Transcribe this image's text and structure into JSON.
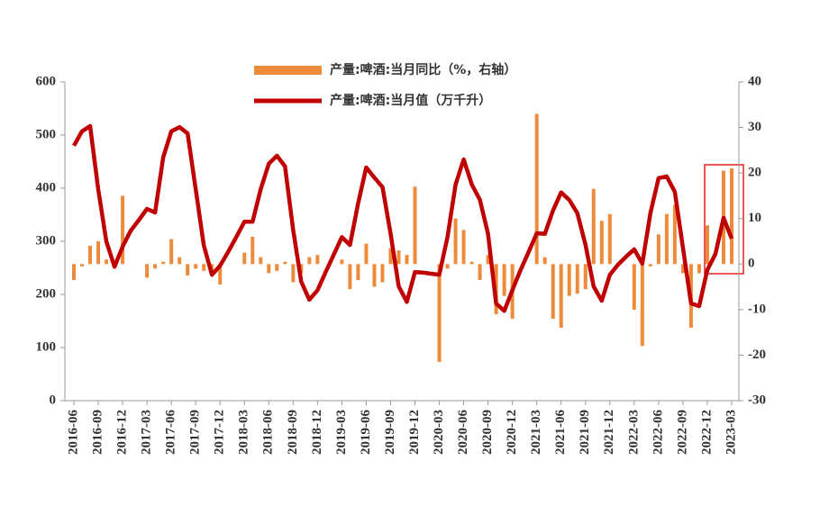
{
  "chart_data": {
    "type": "bar+line",
    "categories": [
      "2016-06",
      null,
      null,
      "2016-09",
      null,
      null,
      "2016-12",
      null,
      null,
      "2017-03",
      null,
      null,
      "2017-06",
      null,
      null,
      "2017-09",
      null,
      null,
      "2017-12",
      null,
      null,
      "2018-03",
      null,
      null,
      "2018-06",
      null,
      null,
      "2018-09",
      null,
      null,
      "2018-12",
      null,
      null,
      "2019-03",
      null,
      null,
      "2019-06",
      null,
      null,
      "2019-09",
      null,
      null,
      "2019-12",
      null,
      null,
      "2020-03",
      null,
      null,
      "2020-06",
      null,
      null,
      "2020-09",
      null,
      null,
      "2020-12",
      null,
      null,
      "2021-03",
      null,
      null,
      "2021-06",
      null,
      null,
      "2021-09",
      null,
      null,
      "2021-12",
      null,
      null,
      "2022-03",
      null,
      null,
      "2022-06",
      null,
      null,
      "2022-09",
      null,
      null,
      "2022-12",
      null,
      null,
      "2023-03"
    ],
    "series": [
      {
        "name": "产量:啤酒:当月同比（%，右轴）",
        "type": "bar",
        "axis": "y2",
        "color": "#ED8B3A",
        "values": [
          -3.5,
          -0.5,
          4,
          5,
          1,
          0.5,
          15,
          null,
          null,
          -3,
          -1,
          0.5,
          5.5,
          1.5,
          -2.5,
          -1,
          -1.5,
          -2,
          -4.5,
          null,
          null,
          2.5,
          6,
          1.5,
          -2,
          -1.5,
          0.5,
          -4,
          -2,
          1.5,
          2,
          null,
          null,
          1,
          -5.5,
          -3.5,
          4.5,
          -5,
          -4,
          3.5,
          3,
          2,
          17,
          null,
          null,
          -21.5,
          -1,
          10,
          7.5,
          0.5,
          -3.5,
          2,
          -11,
          -7,
          -12,
          null,
          null,
          33,
          1.5,
          -12,
          -14,
          -7,
          -6.5,
          -5.5,
          16.5,
          9.5,
          11,
          null,
          null,
          -10,
          -18,
          -0.5,
          6.5,
          11,
          13,
          -2,
          -14,
          -2,
          8.5,
          null,
          20.5,
          21
        ]
      },
      {
        "name": "产量:啤酒:当月值（万千升）",
        "type": "line",
        "axis": "y",
        "color": "#C00000",
        "values": [
          480,
          507,
          517,
          398,
          300,
          252,
          290,
          320,
          340,
          361,
          354,
          458,
          507,
          515,
          503,
          398,
          292,
          237,
          254,
          280,
          308,
          337,
          337,
          398,
          446,
          461,
          441,
          322,
          224,
          190,
          208,
          242,
          275,
          308,
          293,
          371,
          439,
          420,
          402,
          314,
          215,
          186,
          242,
          241,
          239,
          237,
          308,
          407,
          454,
          407,
          378,
          314,
          183,
          169,
          208,
          246,
          280,
          315,
          314,
          358,
          392,
          378,
          353,
          293,
          215,
          188,
          237,
          256,
          271,
          285,
          258,
          354,
          419,
          422,
          393,
          288,
          183,
          178,
          246,
          276,
          344,
          305
        ]
      }
    ],
    "ylim": [
      0,
      600
    ],
    "yticks": [
      0,
      100,
      200,
      300,
      400,
      500,
      600
    ],
    "y2lim": [
      -30,
      40
    ],
    "y2ticks": [
      -30,
      -20,
      -10,
      0,
      10,
      20,
      30,
      40
    ]
  }
}
